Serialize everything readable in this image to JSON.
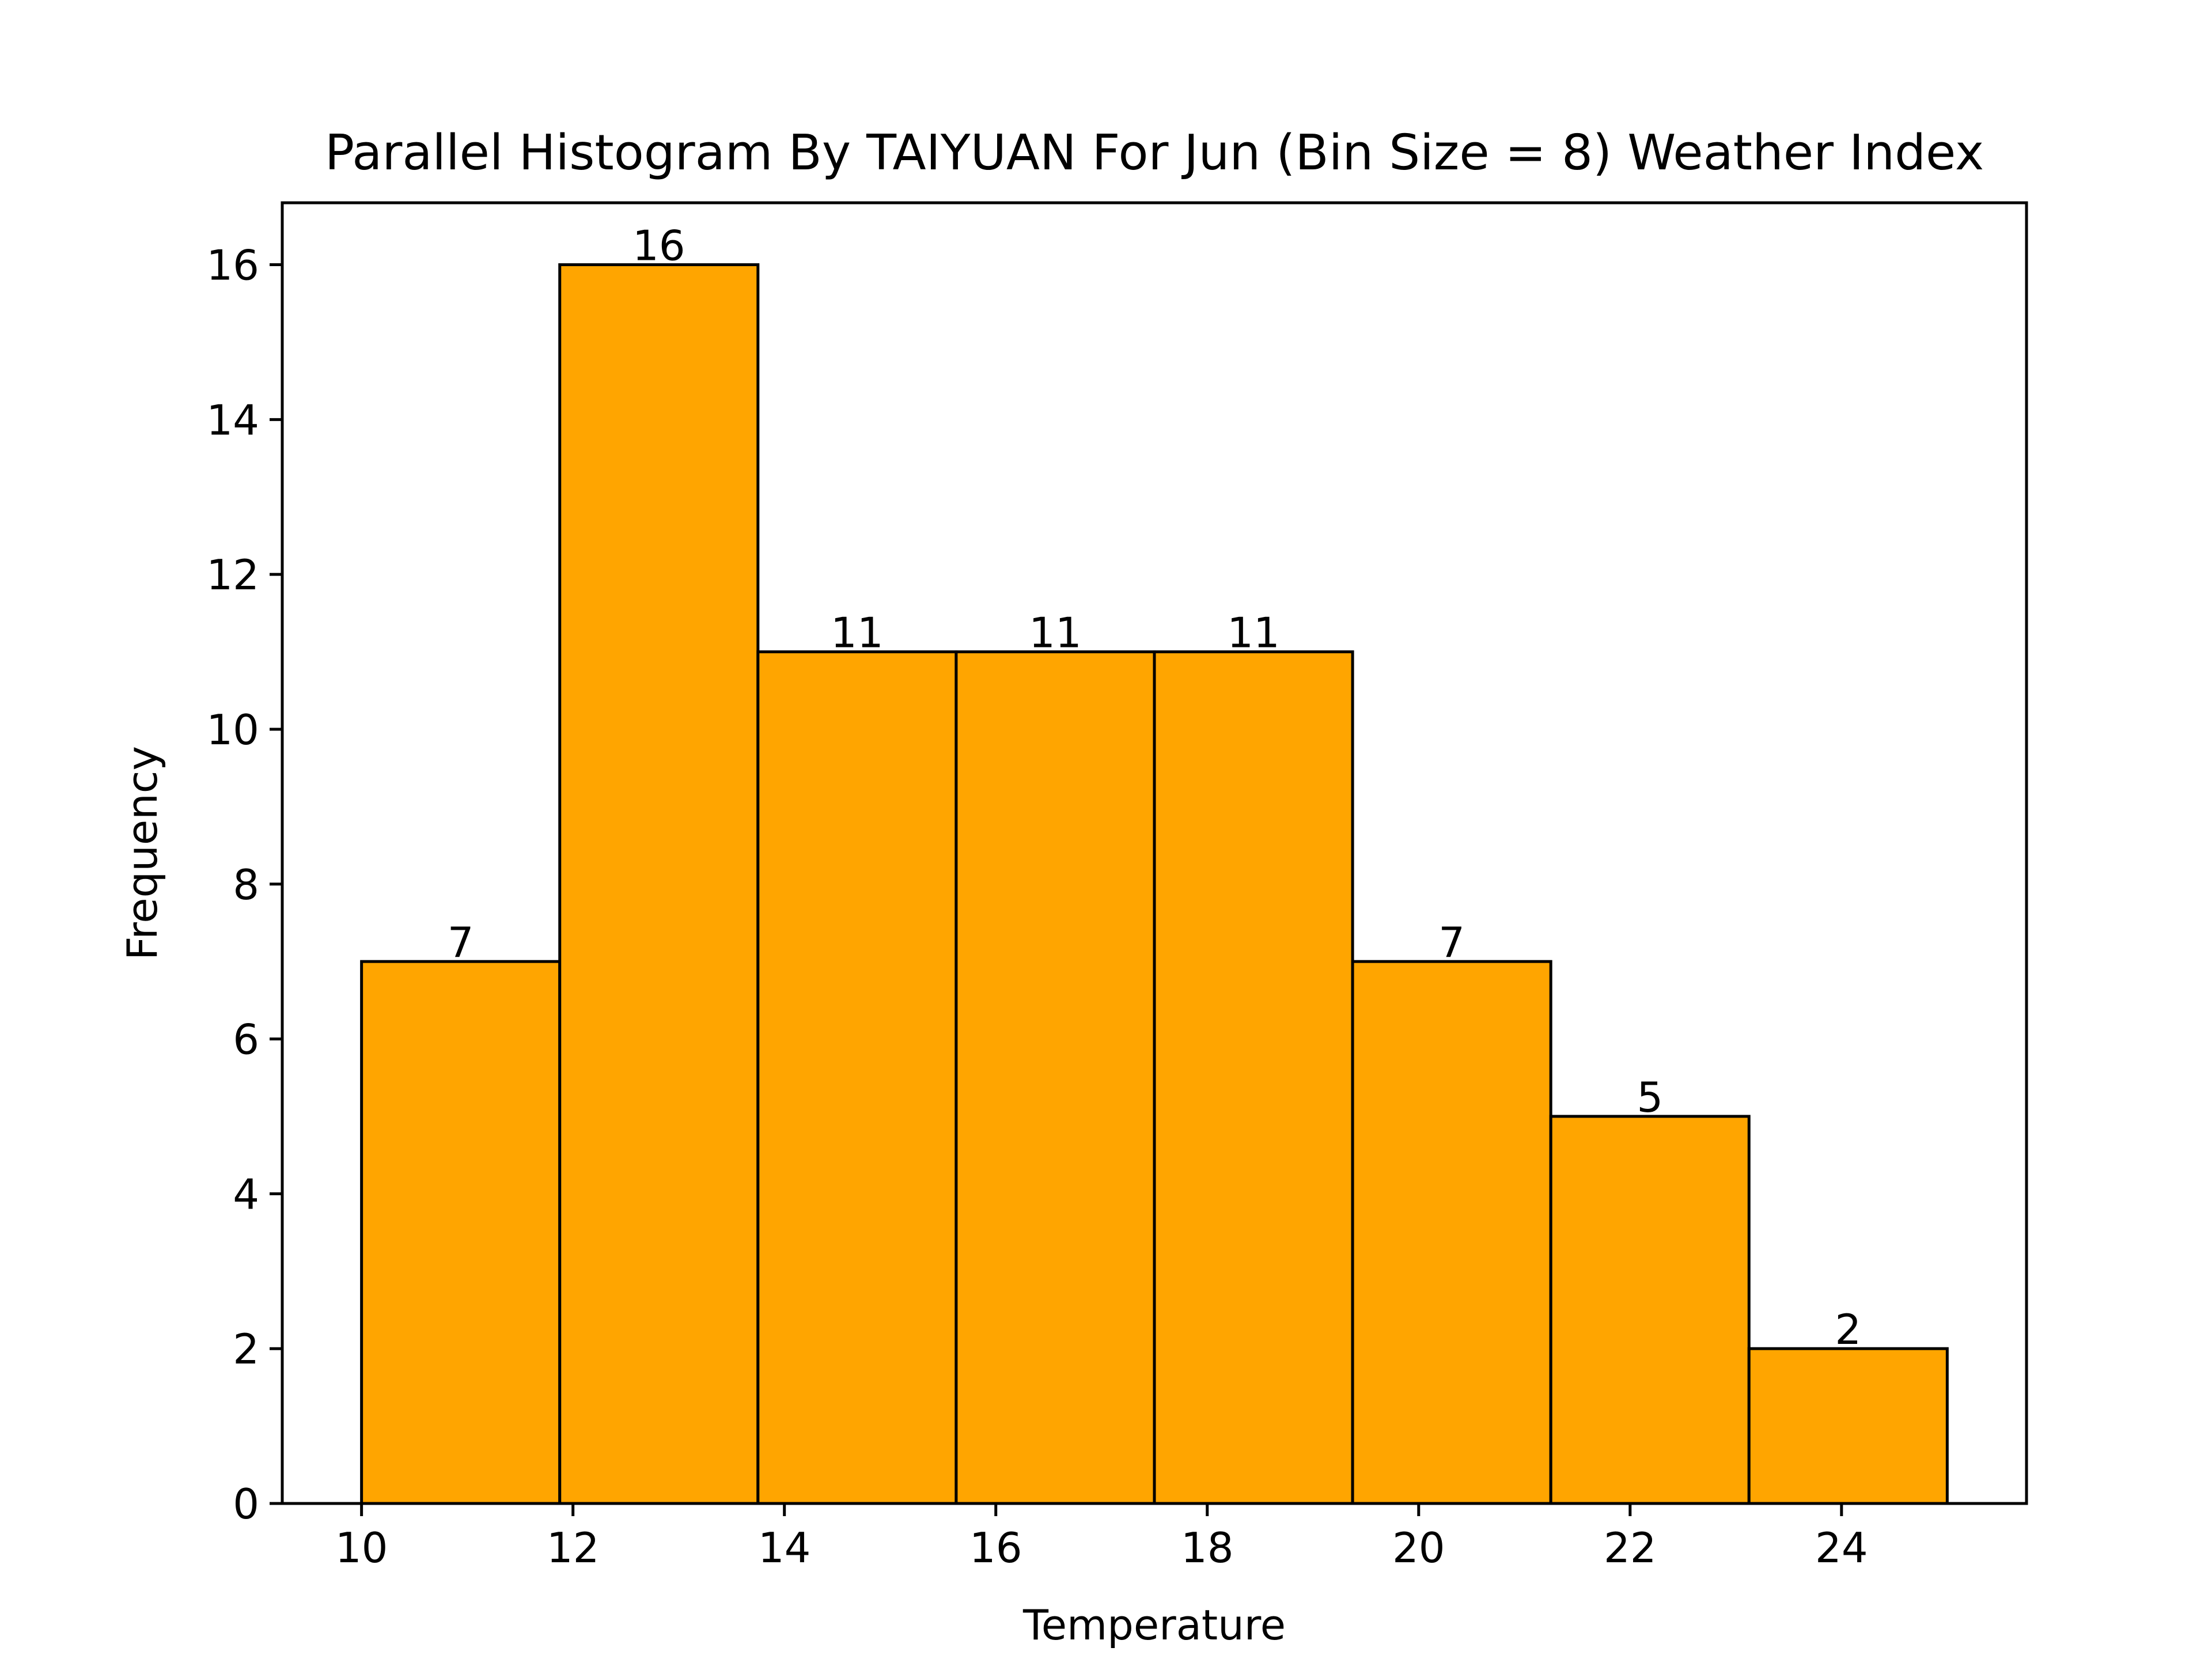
{
  "chart_data": {
    "type": "bar",
    "title": "Parallel Histogram By TAIYUAN For Jun (Bin Size = 8) Weather Index",
    "xlabel": "Temperature",
    "ylabel": "Frequency",
    "bin_edges": [
      10,
      11.875,
      13.75,
      15.625,
      17.5,
      19.375,
      21.25,
      23.125,
      25
    ],
    "values": [
      7,
      16,
      11,
      11,
      11,
      7,
      5,
      2
    ],
    "xlim": [
      9.25,
      25.75
    ],
    "ylim": [
      0,
      16.8
    ],
    "xticks": [
      10,
      12,
      14,
      16,
      18,
      20,
      22,
      24
    ],
    "yticks": [
      0,
      2,
      4,
      6,
      8,
      10,
      12,
      14,
      16
    ],
    "bar_color": "#FFA500",
    "edge_color": "#000000",
    "grid": false
  }
}
